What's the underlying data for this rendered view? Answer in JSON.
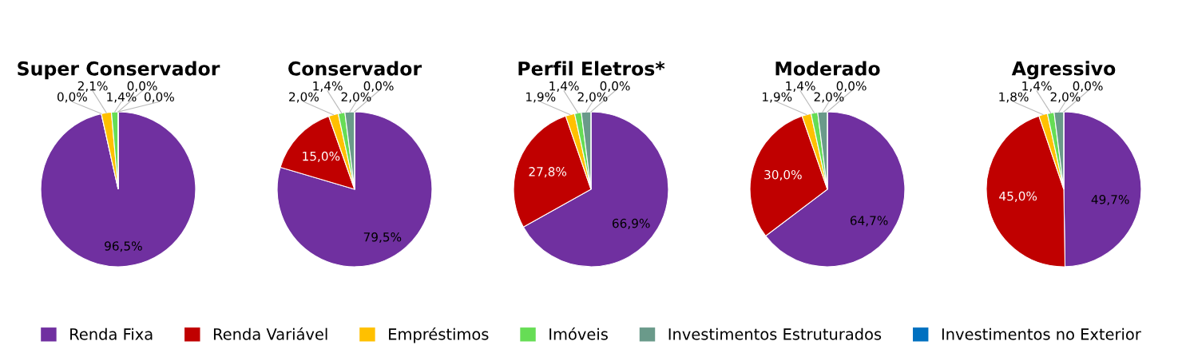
{
  "chart_data": [
    {
      "type": "pie",
      "title": "Super Conservador",
      "categories": [
        "Renda Fixa",
        "Renda Variável",
        "Empréstimos",
        "Imóveis",
        "Investimentos Estruturados",
        "Investimentos no Exterior"
      ],
      "values": [
        96.5,
        0.0,
        2.1,
        1.4,
        0.0,
        0.0
      ],
      "colors": [
        "#7030a0",
        "#c00000",
        "#ffc000",
        "#66dd55",
        "#6a9a8a",
        "#0070c0"
      ],
      "value_labels": [
        "96,5%",
        "0,0%",
        "2,1%",
        "1,4%",
        "0,0%",
        "0,0%"
      ],
      "legend": "bottom"
    },
    {
      "type": "pie",
      "title": "Conservador",
      "categories": [
        null,
        null,
        null,
        null,
        null,
        null
      ],
      "values": [
        79.5,
        15.0,
        2.0,
        1.4,
        2.0,
        0.0
      ],
      "colors": [
        "#7030a0",
        "#c00000",
        "#ffc000",
        "#66dd55",
        "#6a9a8a",
        "#0070c0"
      ],
      "value_labels": [
        "79,5%",
        "15,0%",
        "2,0%",
        "1,4%",
        "2,0%",
        "0,0%"
      ]
    },
    {
      "type": "pie",
      "title": "Perfil Eletros*",
      "categories": [
        null,
        null,
        null,
        null,
        null,
        null
      ],
      "values": [
        66.9,
        27.8,
        1.9,
        1.4,
        2.0,
        0.0
      ],
      "colors": [
        "#7030a0",
        "#c00000",
        "#ffc000",
        "#66dd55",
        "#6a9a8a",
        "#0070c0"
      ],
      "value_labels": [
        "66,9%",
        "27,8%",
        "1,9%",
        "1,4%",
        "2,0%",
        "0,0%"
      ]
    },
    {
      "type": "pie",
      "title": "Moderado",
      "categories": [
        null,
        null,
        null,
        null,
        null,
        null
      ],
      "values": [
        64.7,
        30.0,
        1.9,
        1.4,
        2.0,
        0.0
      ],
      "colors": [
        "#7030a0",
        "#c00000",
        "#ffc000",
        "#66dd55",
        "#6a9a8a",
        "#0070c0"
      ],
      "value_labels": [
        "64,7%",
        "30,0%",
        "1,9%",
        "1,4%",
        "2,0%",
        "0,0%"
      ]
    },
    {
      "type": "pie",
      "title": "Agressivo",
      "categories": [
        null,
        null,
        null,
        null,
        null,
        null
      ],
      "values": [
        49.7,
        45.0,
        1.8,
        1.4,
        2.0,
        0.0
      ],
      "colors": [
        "#7030a0",
        "#c00000",
        "#ffc000",
        "#66dd55",
        "#6a9a8a",
        "#0070c0"
      ],
      "value_labels": [
        "49,7%",
        "45,0%",
        "1,8%",
        "1,4%",
        "2,0%",
        "0,0%"
      ]
    }
  ]
}
